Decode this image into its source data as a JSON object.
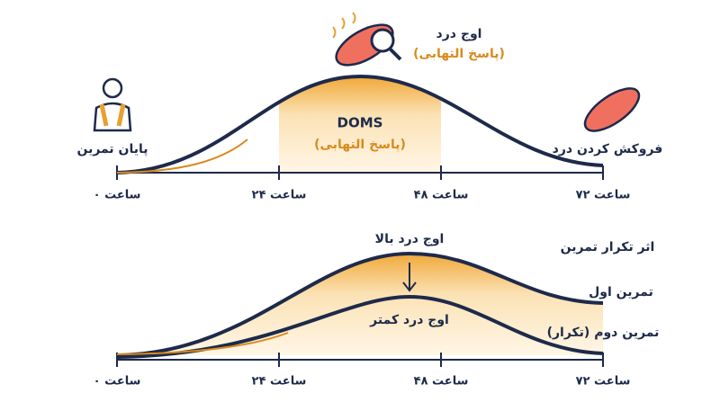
{
  "top": {
    "peak_label": "اوج درد",
    "peak_sublabel": "(پاسخ التهابی)",
    "center_label": "DOMS",
    "center_sublabel": "(پاسخ التهابی)",
    "start_label": "پایان تمرین",
    "end_label": "فروکش کردن درد",
    "axis_labels": [
      "۰ ساعت",
      "۲۴ ساعت",
      "۴۸ ساعت",
      "۷۲ ساعت"
    ]
  },
  "bottom": {
    "title": "اثر تکرار تمرین",
    "high_peak_label": "اوج درد بالا",
    "low_peak_label": "اوج درد کمتر",
    "first_label": "تمرین اول",
    "second_label": "تمرین دوم (تکرار)",
    "axis_labels": [
      "۰ ساعت",
      "۲۴ ساعت",
      "۴۸ ساعت",
      "۷۲ ساعت"
    ]
  }
}
